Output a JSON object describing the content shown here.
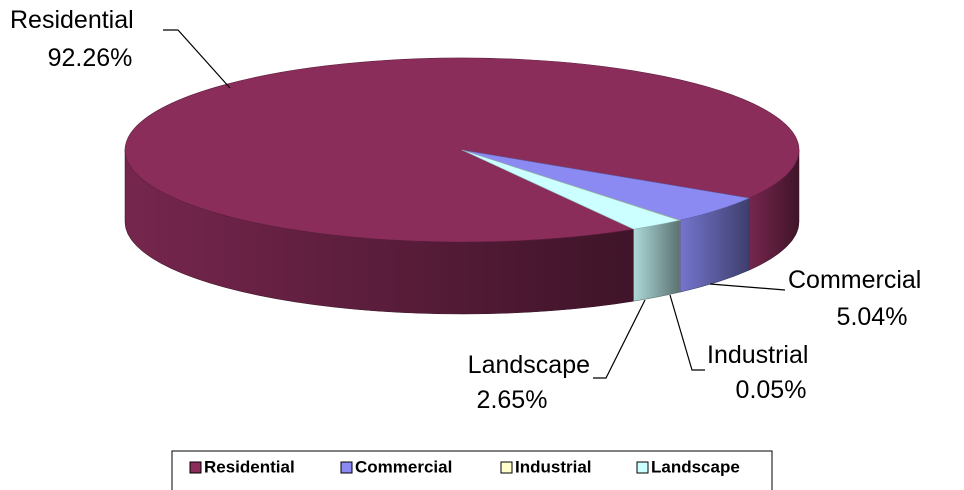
{
  "chart_data": {
    "type": "pie",
    "categories": [
      "Residential",
      "Commercial",
      "Industrial",
      "Landscape"
    ],
    "values": [
      92.26,
      5.04,
      0.05,
      2.65
    ],
    "value_labels": [
      "92.26%",
      "5.04%",
      "0.05%",
      "2.65%"
    ],
    "colors": [
      "#8b2d5a",
      "#8a8af2",
      "#ffffcc",
      "#ccffff"
    ]
  }
}
